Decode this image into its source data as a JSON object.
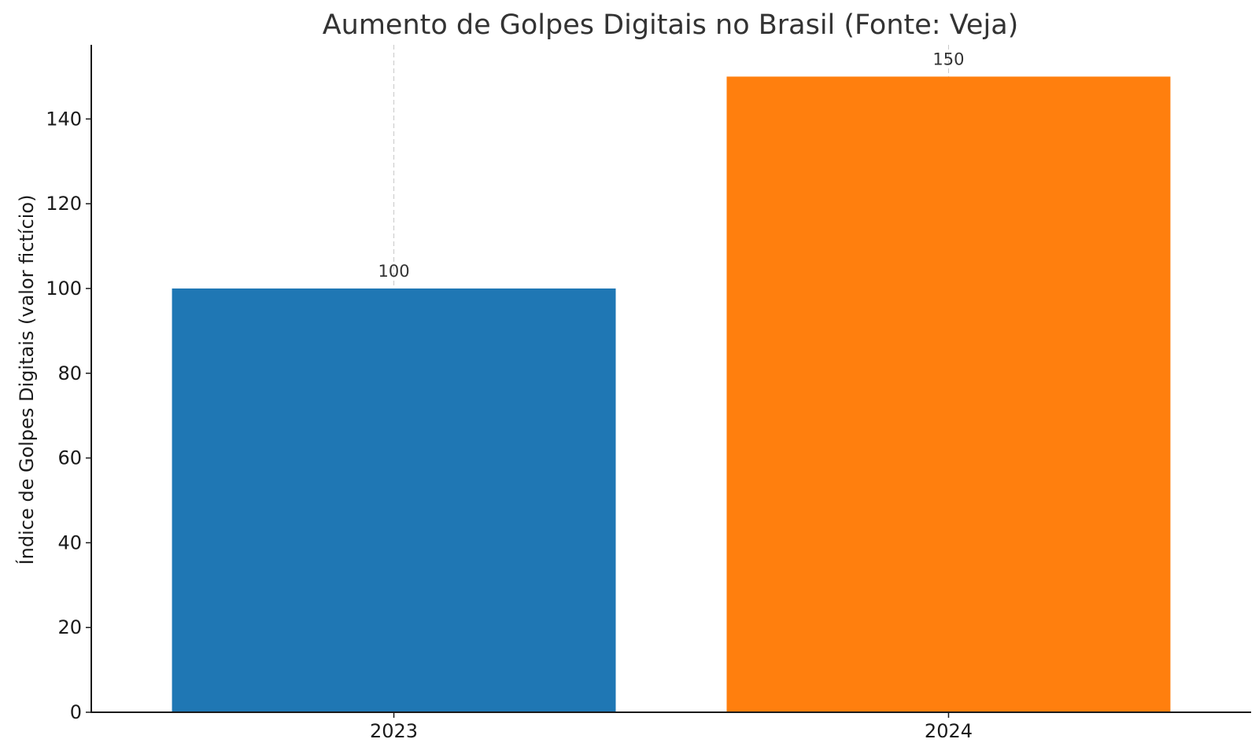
{
  "chart_data": {
    "type": "bar",
    "title": "Aumento de Golpes Digitais no Brasil (Fonte: Veja)",
    "xlabel": "",
    "ylabel": "Índice de Golpes Digitais (valor fictício)",
    "categories": [
      "2023",
      "2024"
    ],
    "values": [
      100,
      150
    ],
    "colors": [
      "#1f77b4",
      "#ff7f0e"
    ],
    "data_labels": [
      "100",
      "150"
    ],
    "yticks": [
      0,
      20,
      40,
      60,
      80,
      100,
      120,
      140
    ],
    "ylim": [
      0,
      157.5
    ],
    "grid": "x-axis dashed",
    "legend": "none"
  }
}
